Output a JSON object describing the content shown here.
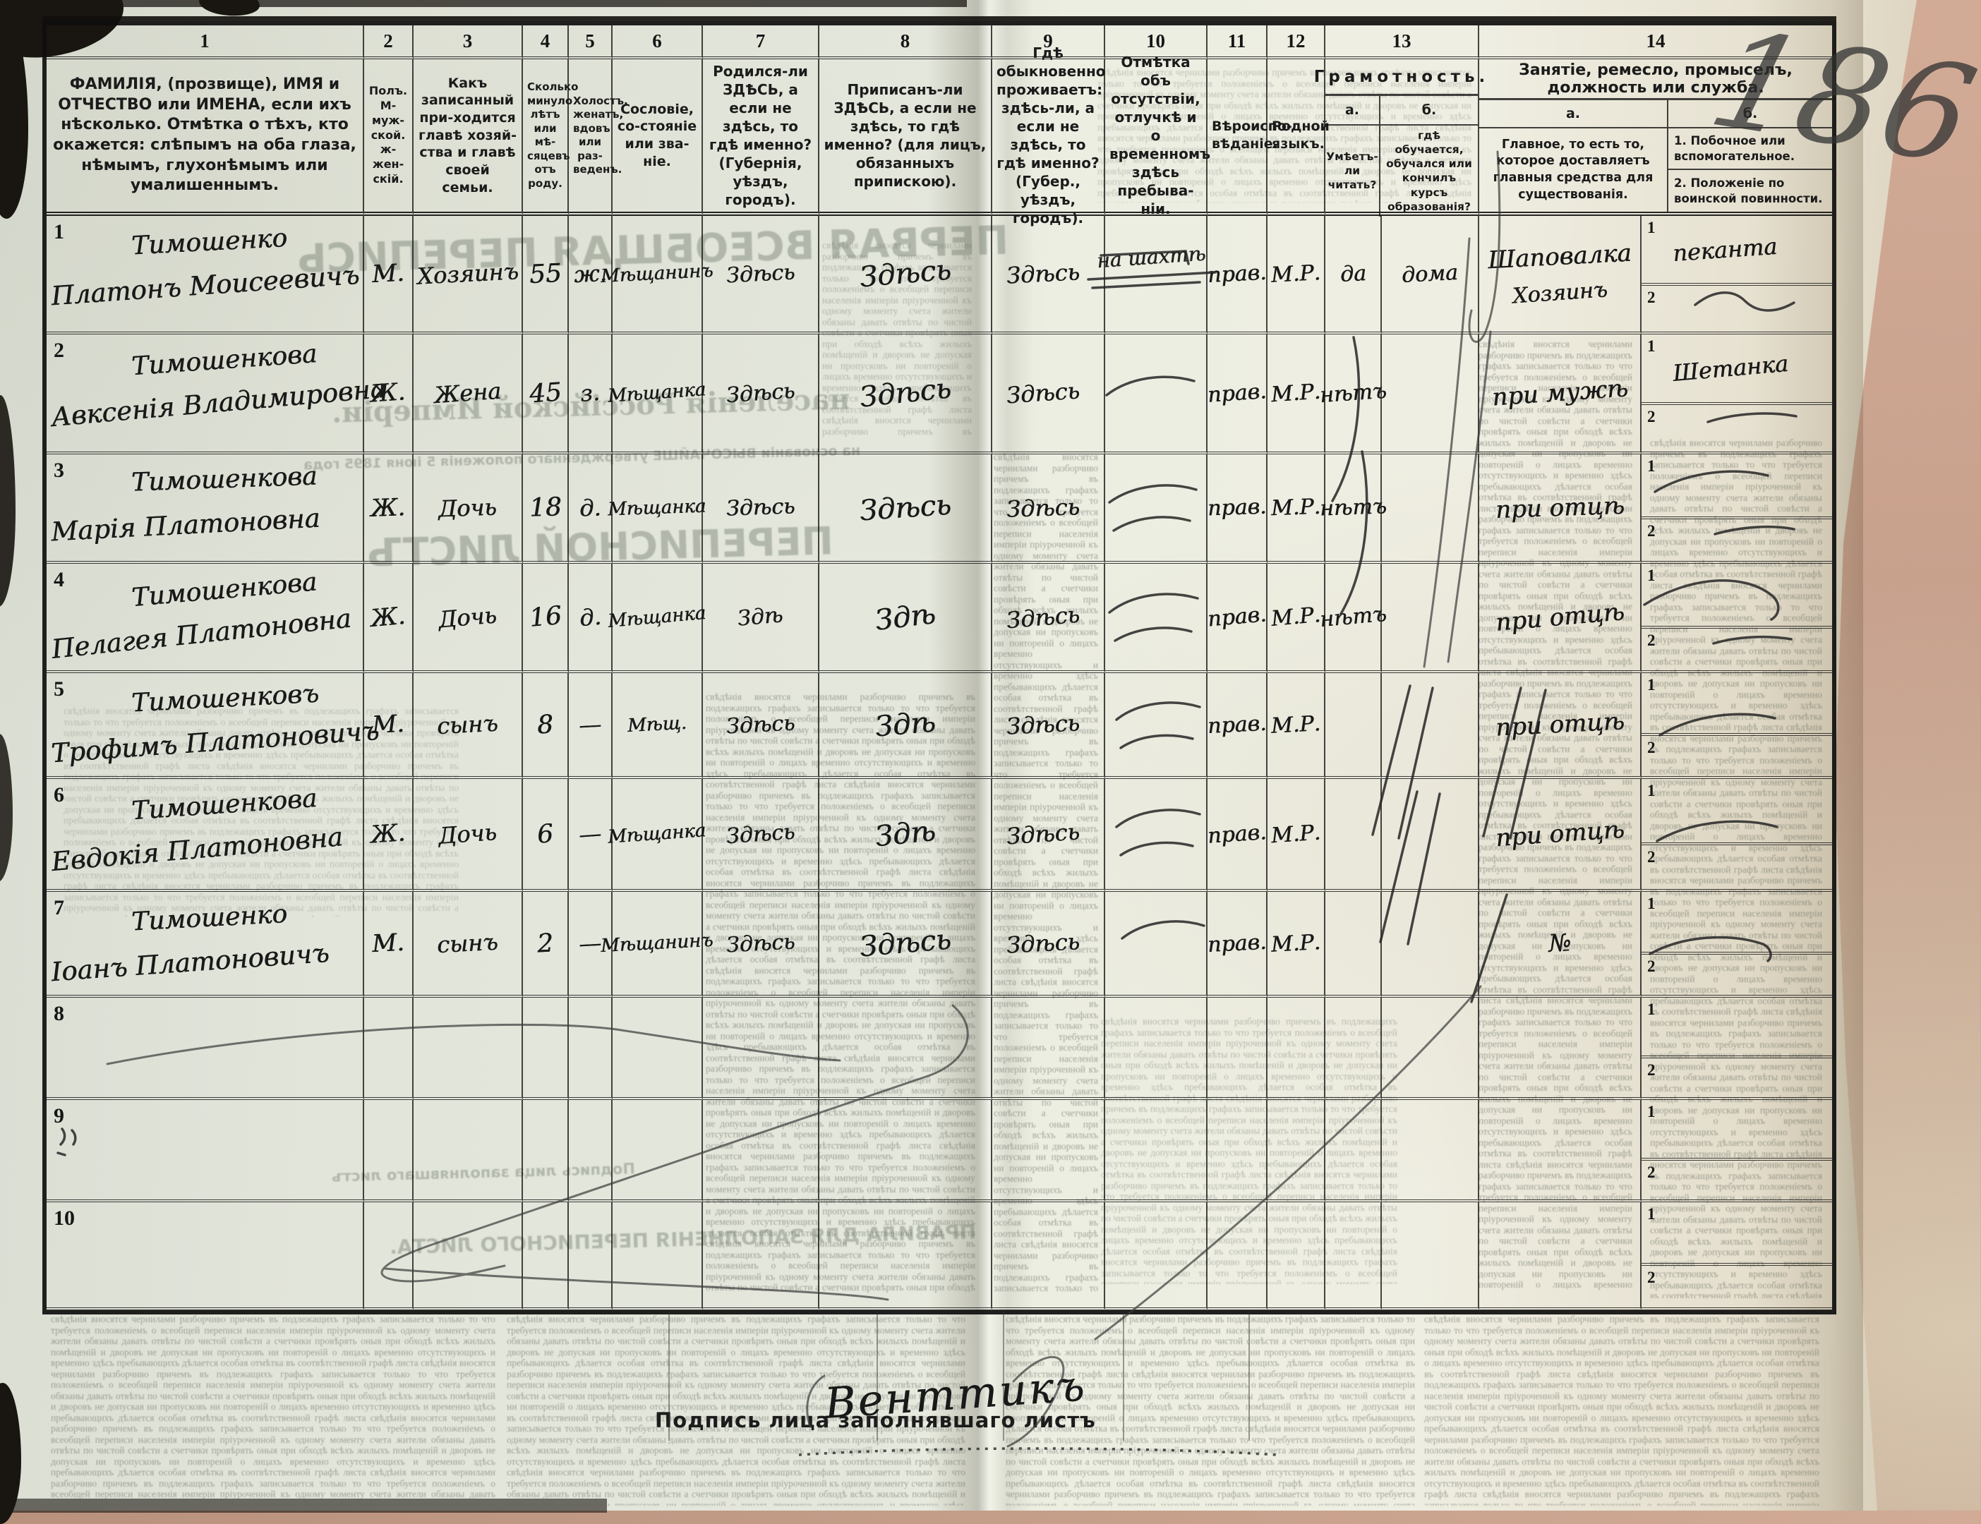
{
  "page_number": "186",
  "table": {
    "cols": [
      {
        "num": "1",
        "title": "ФАМИЛІЯ, (прозвище), ИМЯ и ОТЧЕСТВО или ИМЕНА, если ихъ нѣсколько. Отмѣтка о тѣхъ, кто окажется: слѣпымъ на оба глаза, нѣмымъ, глухонѣмымъ или умалишеннымъ."
      },
      {
        "num": "2",
        "title": "Полъ. М-муж-ской. ж-жен-скій."
      },
      {
        "num": "3",
        "title": "Какъ записанный при-ходится главѣ хозяй-ства и главѣ своей семьи."
      },
      {
        "num": "4",
        "title": "Сколько минуло лѣтъ или мѣ-сяцевъ отъ роду."
      },
      {
        "num": "5",
        "title": "Холостъ, женатъ, вдовъ или раз-веденъ."
      },
      {
        "num": "6",
        "title": "Сословіе, со-стояніе или зва-ніе."
      },
      {
        "num": "7",
        "title": "Родился-ли ЗДѢСЬ, а если не здѣсь, то гдѣ именно? (Губернія, уѣздъ, городъ)."
      },
      {
        "num": "8",
        "title": "Приписанъ-ли ЗДѢСЬ, а если не здѣсь, то гдѣ именно? (для лицъ, обязанныхъ припискою)."
      },
      {
        "num": "9",
        "title": "Гдѣ обыкновенно проживаетъ: здѣсь-ли, а если не здѣсь, то гдѣ именно? (Губер., уѣздъ, городъ)."
      },
      {
        "num": "10",
        "title": "Отмѣтка объ отсутствіи, отлучкѣ и о временномъ здѣсь пребыва-ніи."
      },
      {
        "num": "11",
        "title": "Вѣроиспо-вѣданіе."
      },
      {
        "num": "12",
        "title": "Родной языкъ."
      }
    ],
    "col13": {
      "num": "13",
      "title": "Грамотность.",
      "a_label": "а.",
      "b_label": "б.",
      "a_text": "Умѣетъ-ли читать?",
      "b_text": "гдѣ обучается, обучался или кончилъ курсъ образованія?"
    },
    "col14": {
      "num": "14",
      "title": "Занятіе, ремесло, промыселъ, должность или служба.",
      "a_label": "а.",
      "b_label": "б.",
      "a_text": "Главное, то есть то, которое доставляетъ главныя средства для существованія.",
      "b_item1": "1. Побочное или вспомогательное.",
      "b_item2": "2. Положеніе по воинской повинности."
    },
    "sub1": "1",
    "sub2": "2"
  },
  "rows": [
    {
      "n": "1",
      "name1": "Тимошенко",
      "name2": "Платонъ Моисеевичъ",
      "sex": "М.",
      "relation": "Хозяинъ",
      "age": "55",
      "marital": "ж.",
      "estate": "Мѣщанинъ",
      "born": "Здѣсь",
      "registered": "Здѣсь",
      "resides": "Здѣсь",
      "absence": "на шахтѣ",
      "absence_struck": true,
      "religion": "прав.",
      "language": "М.Р.",
      "reads": "да",
      "educated": "дома",
      "occ_a1": "Шаповалка",
      "occ_a2": "Хозяинъ",
      "occ_b1": "пеканта"
    },
    {
      "n": "2",
      "name1": "Тимошенкова",
      "name2": "Авксенія Владимировна",
      "sex": "Ж.",
      "relation": "Жена",
      "age": "45",
      "marital": "з.",
      "estate": "Мѣщанка",
      "born": "Здѣсь",
      "registered": "Здѣсь",
      "resides": "Здѣсь",
      "religion": "прав.",
      "language": "М.Р.",
      "reads": "нѣтъ",
      "occ_a1": "при мужѣ",
      "occ_b1": "Шетанка"
    },
    {
      "n": "3",
      "name1": "Тимошенкова",
      "name2": "Марія Платоновна",
      "sex": "Ж.",
      "relation": "Дочь",
      "age": "18",
      "marital": "д.",
      "estate": "Мѣщанка",
      "born": "Здѣсь",
      "registered": "Здѣсь",
      "resides": "Здѣсь",
      "religion": "прав.",
      "language": "М.Р.",
      "reads": "нѣтъ",
      "occ_a1": "при отцѣ"
    },
    {
      "n": "4",
      "name1": "Тимошенкова",
      "name2": "Пелагея Платоновна",
      "sex": "Ж.",
      "relation": "Дочь",
      "age": "16",
      "marital": "д.",
      "estate": "Мѣщанка",
      "born": "Здѣ",
      "registered": "Здѣ",
      "resides": "Здѣсь",
      "religion": "прав.",
      "language": "М.Р.",
      "reads": "нѣтъ",
      "occ_a1": "при отцѣ"
    },
    {
      "n": "5",
      "name1": "Тимошенковъ",
      "name2": "Трофимъ Платоновичъ",
      "sex": "М.",
      "relation": "сынъ",
      "age": "8",
      "marital": "—",
      "estate": "Мѣщ.",
      "born": "Здѣсь",
      "registered": "Здѣ",
      "resides": "Здѣсь",
      "religion": "прав.",
      "language": "М.Р.",
      "occ_a1": "при отцѣ"
    },
    {
      "n": "6",
      "name1": "Тимошенкова",
      "name2": "Евдокія Платоновна",
      "sex": "Ж.",
      "relation": "Дочь",
      "age": "6",
      "marital": "—",
      "estate": "Мѣщанка",
      "born": "Здѣсь",
      "registered": "Здѣ",
      "resides": "Здѣсь",
      "religion": "прав.",
      "language": "М.Р.",
      "occ_a1": "при отцѣ"
    },
    {
      "n": "7",
      "name1": "Тимошенко",
      "name2": "Іоанъ Платоновичъ",
      "sex": "М.",
      "relation": "сынъ",
      "age": "2",
      "marital": "—",
      "estate": "Мѣщанинъ",
      "born": "Здѣсь",
      "registered": "Здѣсь",
      "resides": "Здѣсь",
      "religion": "прав.",
      "language": "М.Р.",
      "occ_a1": "№"
    },
    {
      "n": "8"
    },
    {
      "n": "9"
    },
    {
      "n": "10"
    }
  ],
  "footer": {
    "signature_label": "Подпись лица заполнявшаго листъ",
    "signature": "Венттикъ"
  },
  "showthrough": {
    "title1": "ПЕРВАЯ ВСЕОБЩАЯ ПЕРЕПИСЬ",
    "title2": "населенія Россійской Имперіи.",
    "title2b": "на основаніи ВЫСОЧАЙШЕ утвержденнаго положенія 5 іюня 1895 года",
    "title3": "ПЕРЕПИСНОЙ ЛИСТЪ",
    "title4": "ПРАВИЛА ДЛЯ ЗАПОЛНЕНІЯ ПЕРЕПИСНОГО ЛИСТА.",
    "title5": "Подпись лица заполнявшаго листъ",
    "filler": "свѣдѣнія вносятся чернилами разборчиво причемъ въ подлежащихъ графахъ записывается только то что требуется положеніемъ о всеобщей переписи населенія имперіи пріуроченной къ одному моменту счета жители обязаны давать отвѣты по чистой совѣсти а счетчики провѣрять оныя при обходѣ всѣхъ жилыхъ помѣщеній и дворовъ не допуская ни пропусковъ ни повтореній о лицахъ временно отсутствующихъ и временно здѣсь пребывающихъ дѣлается особая отмѣтка въ соотвѣтственной графѣ листа "
  }
}
